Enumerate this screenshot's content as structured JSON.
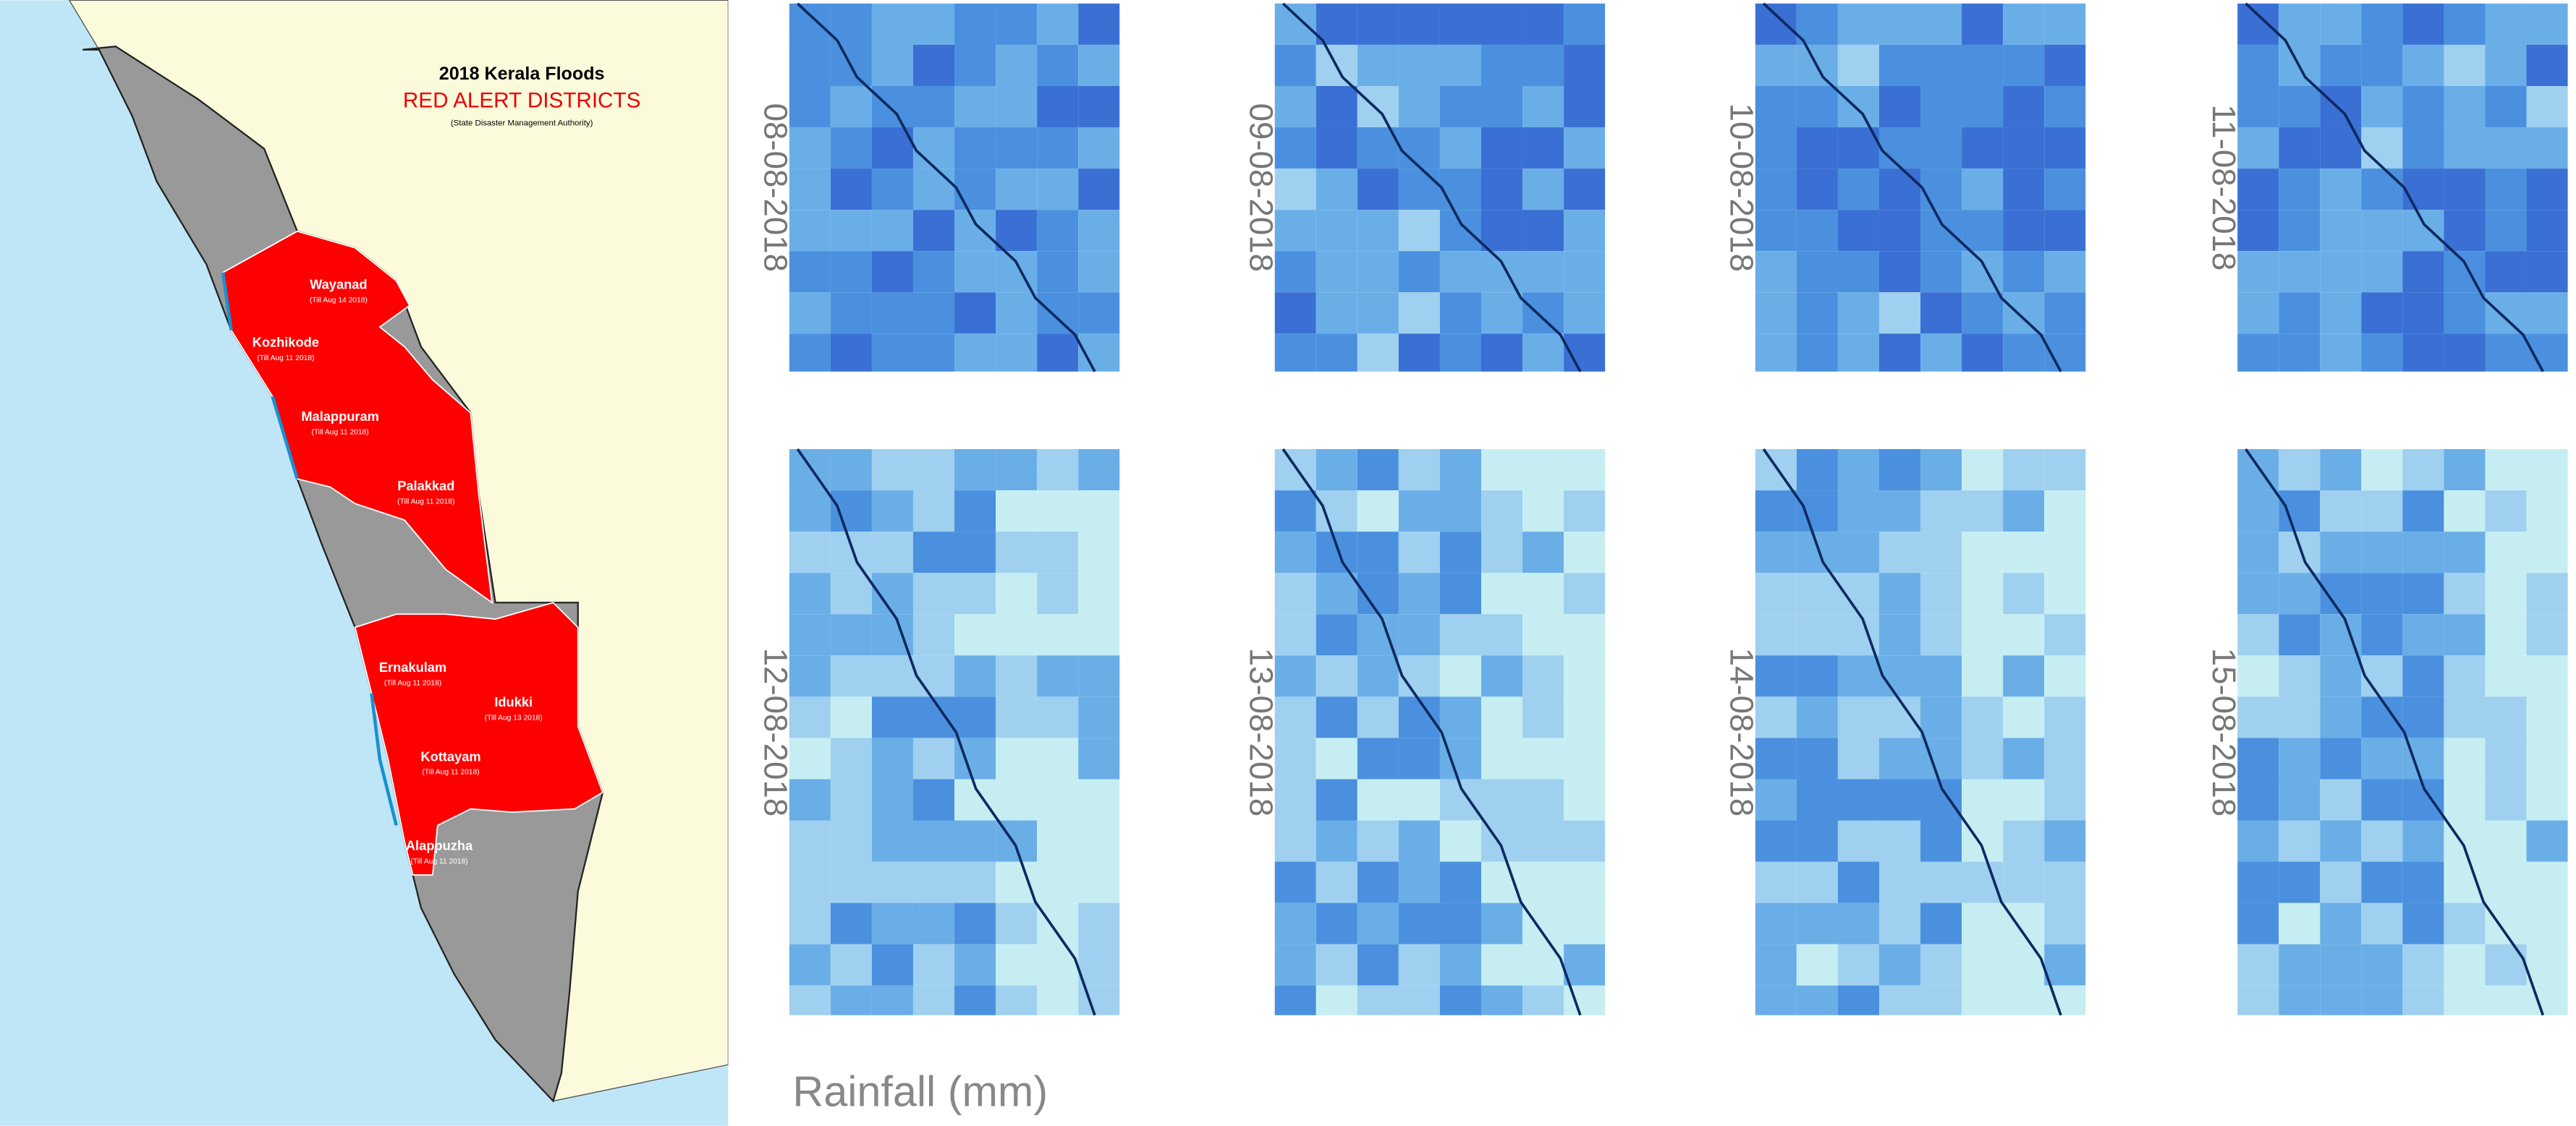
{
  "map": {
    "title": "2018 Kerala Floods",
    "subtitle": "RED ALERT DISTRICTS",
    "source": "(State Disaster Management Authority)",
    "districts": [
      {
        "name": "Wayanad",
        "note": "(Till Aug 14 2018)"
      },
      {
        "name": "Kozhikode",
        "note": "(Till Aug 11 2018)"
      },
      {
        "name": "Malappuram",
        "note": "(Till Aug 11 2018)"
      },
      {
        "name": "Palakkad",
        "note": "(Till Aug 11 2018)"
      },
      {
        "name": "Ernakulam",
        "note": "(Till Aug 11 2018)"
      },
      {
        "name": "Idukki",
        "note": "(Till Aug 13 2018)"
      },
      {
        "name": "Kottayam",
        "note": "(Till Aug 11 2018)"
      },
      {
        "name": "Alappuzha",
        "note": "(Till Aug 11 2018)"
      }
    ]
  },
  "rainfall": {
    "panels": [
      {
        "date": "08-08-2018"
      },
      {
        "date": "09-08-2018"
      },
      {
        "date": "10-08-2018"
      },
      {
        "date": "11-08-2018"
      },
      {
        "date": "12-08-2018"
      },
      {
        "date": "13-08-2018"
      },
      {
        "date": "14-08-2018"
      },
      {
        "date": "15-08-2018"
      }
    ],
    "label": "Rainfall (mm)"
  }
}
